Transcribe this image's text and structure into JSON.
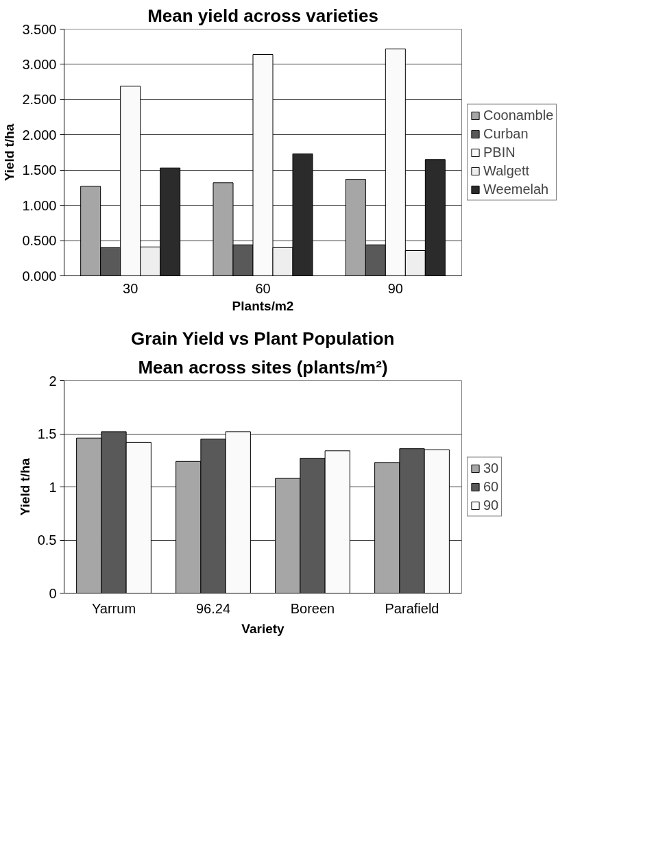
{
  "chart_data": [
    {
      "type": "bar",
      "title": "Mean yield across varieties",
      "xlabel": "Plants/m2",
      "ylabel": "Yield t/ha",
      "categories": [
        "30",
        "60",
        "90"
      ],
      "series": [
        {
          "name": "Coonamble",
          "color": "#a6a6a6",
          "values": [
            1.27,
            1.32,
            1.37
          ]
        },
        {
          "name": "Curban",
          "color": "#595959",
          "values": [
            0.4,
            0.44,
            0.44
          ]
        },
        {
          "name": "PBIN",
          "color": "#fafafa",
          "values": [
            2.69,
            3.14,
            3.22
          ]
        },
        {
          "name": "Walgett",
          "color": "#eeeeee",
          "values": [
            0.41,
            0.4,
            0.36
          ]
        },
        {
          "name": "Weemelah",
          "color": "#2b2b2b",
          "values": [
            1.53,
            1.73,
            1.65
          ]
        }
      ],
      "ylim": [
        0,
        3.5
      ],
      "yticks": [
        {
          "value": 0,
          "label": "0.000"
        },
        {
          "value": 0.5,
          "label": "0.500"
        },
        {
          "value": 1,
          "label": "1.000"
        },
        {
          "value": 1.5,
          "label": "1.500"
        },
        {
          "value": 2,
          "label": "2.000"
        },
        {
          "value": 2.5,
          "label": "2.500"
        },
        {
          "value": 3,
          "label": "3.000"
        },
        {
          "value": 3.5,
          "label": "3.500"
        }
      ],
      "grid": "y",
      "legend": "right"
    },
    {
      "type": "bar",
      "title": "Grain Yield vs Plant Population",
      "subtitle": "Mean across sites (plants/m²)",
      "xlabel": "Variety",
      "ylabel": "Yield t/ha",
      "categories": [
        "Yarrum",
        "96.24",
        "Boreen",
        "Parafield"
      ],
      "series": [
        {
          "name": "30",
          "color": "#a6a6a6",
          "values": [
            1.46,
            1.24,
            1.08,
            1.23
          ]
        },
        {
          "name": "60",
          "color": "#595959",
          "values": [
            1.52,
            1.45,
            1.27,
            1.36
          ]
        },
        {
          "name": "90",
          "color": "#fafafa",
          "values": [
            1.42,
            1.52,
            1.34,
            1.35
          ]
        }
      ],
      "ylim": [
        0,
        2
      ],
      "yticks": [
        0,
        0.5,
        1,
        1.5,
        2
      ],
      "grid": "y",
      "legend": "right"
    }
  ]
}
